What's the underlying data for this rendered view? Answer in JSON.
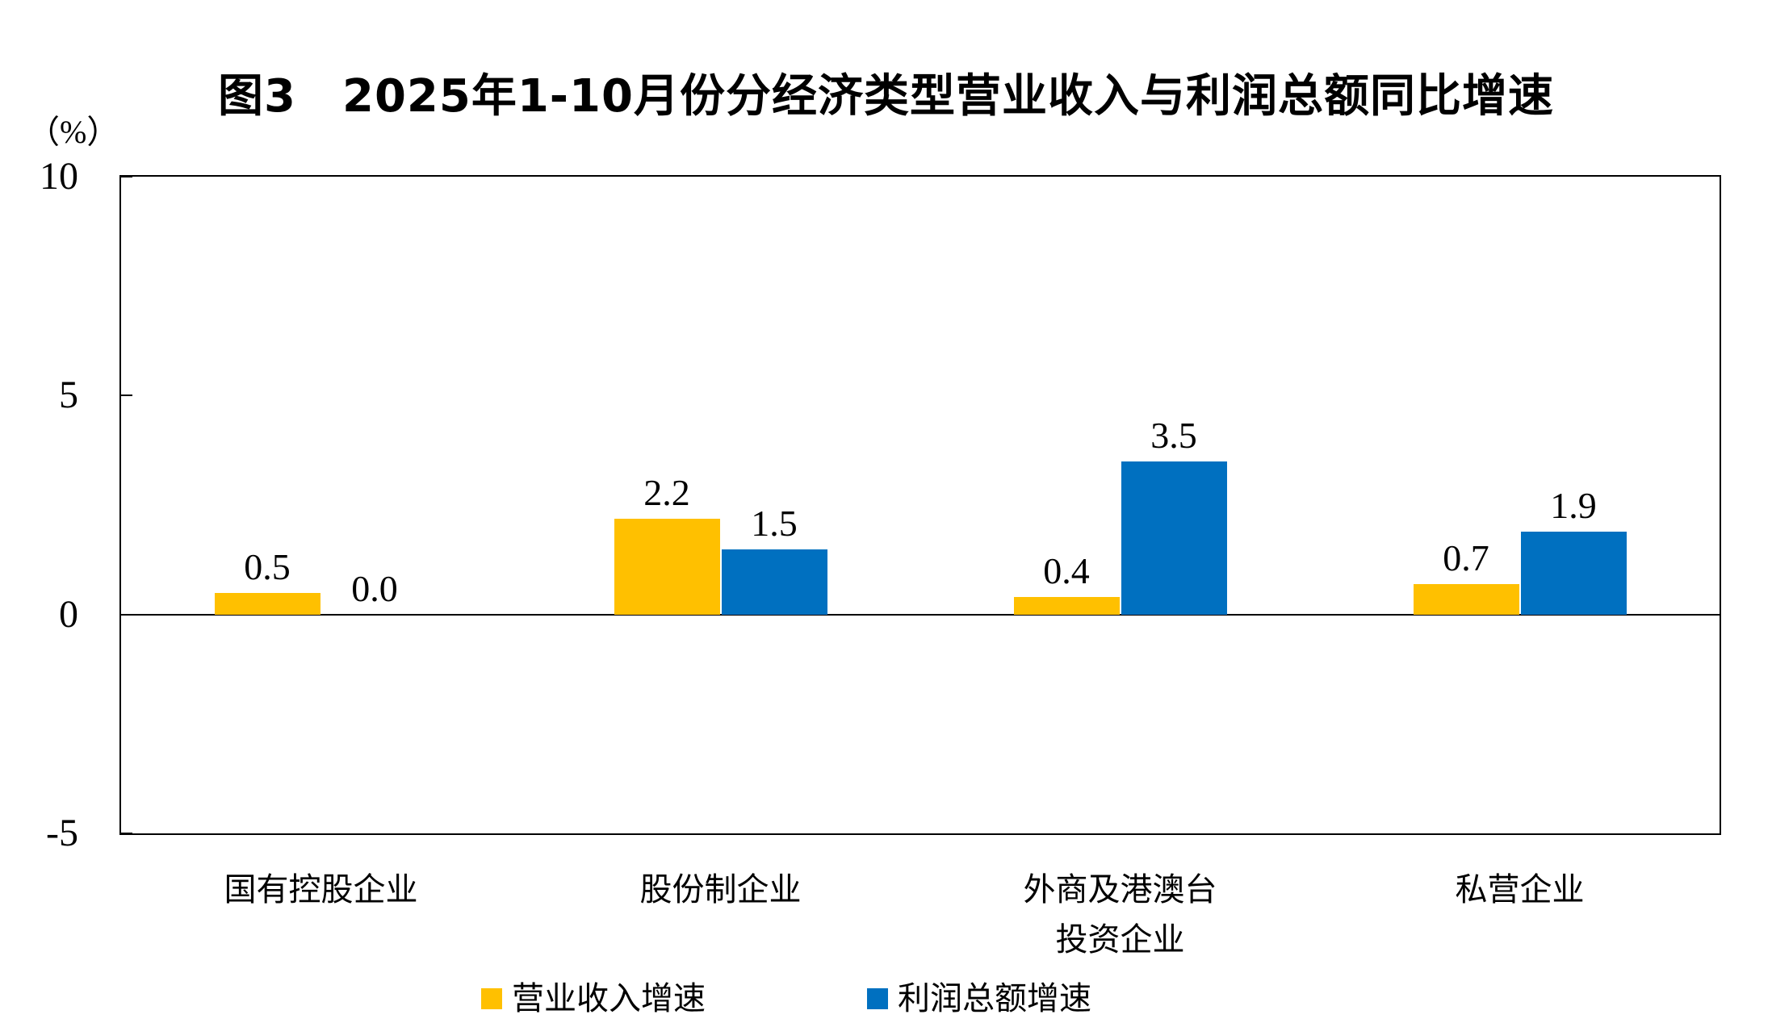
{
  "chart_data": {
    "type": "bar",
    "title": "图3　2025年1-10月份分经济类型营业收入与利润总额同比增速",
    "unit_label": "（%）",
    "categories": [
      "国有控股企业",
      "股份制企业",
      "外商及港澳台\n投资企业",
      "私营企业"
    ],
    "series": [
      {
        "name": "营业收入增速",
        "color": "#FFC000",
        "values": [
          0.5,
          2.2,
          0.4,
          0.7
        ]
      },
      {
        "name": "利润总额增速",
        "color": "#0070C0",
        "values": [
          0.0,
          1.5,
          3.5,
          1.9
        ]
      }
    ],
    "xlabel": "",
    "ylabel": "（%）",
    "ylim": [
      -5,
      10
    ],
    "yticks": [
      10,
      5,
      0,
      -5
    ],
    "grid": false,
    "legend_position": "bottom",
    "value_label_decimals": 1,
    "axis_color": "#000000",
    "text_color": "#000000",
    "background_color": "#FFFFFF"
  }
}
